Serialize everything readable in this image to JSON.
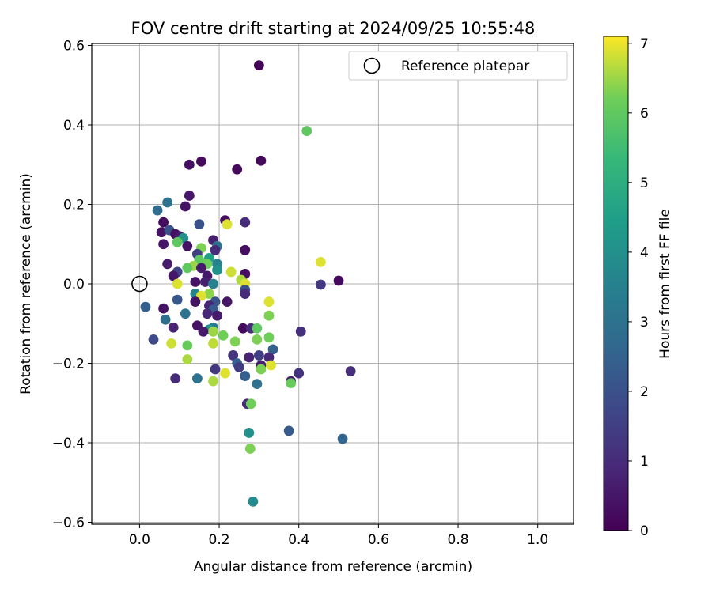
{
  "chart_data": {
    "type": "scatter",
    "title": "FOV centre drift starting at 2024/09/25 10:55:48",
    "xlabel": "Angular distance from reference (arcmin)",
    "ylabel": "Rotation from reference (arcmin)",
    "xlim": [
      -0.12,
      1.09
    ],
    "ylim": [
      -0.605,
      0.605
    ],
    "xticks": [
      0.0,
      0.2,
      0.4,
      0.6,
      0.8,
      1.0
    ],
    "xtick_labels": [
      "0.0",
      "0.2",
      "0.4",
      "0.6",
      "0.8",
      "1.0"
    ],
    "yticks": [
      -0.6,
      -0.4,
      -0.2,
      0.0,
      0.2,
      0.4,
      0.6
    ],
    "ytick_labels": [
      "−0.6",
      "−0.4",
      "−0.2",
      "0.0",
      "0.2",
      "0.4",
      "0.6"
    ],
    "grid": true,
    "legend": {
      "position": "top-right",
      "entries": [
        "Reference platepar"
      ]
    },
    "reference_point": {
      "x": 0.0,
      "y": 0.0
    },
    "colorbar": {
      "label": "Hours from first FF file",
      "colormap": "viridis",
      "range": [
        0,
        7.1
      ],
      "ticks": [
        0,
        1,
        2,
        3,
        4,
        5,
        6,
        7
      ],
      "tick_labels": [
        "0",
        "1",
        "2",
        "3",
        "4",
        "5",
        "6",
        "7"
      ]
    },
    "points": [
      {
        "x": 0.3,
        "y": 0.55,
        "h": 0.1
      },
      {
        "x": 0.42,
        "y": 0.385,
        "h": 6.0
      },
      {
        "x": 0.305,
        "y": 0.31,
        "h": 0.2
      },
      {
        "x": 0.155,
        "y": 0.308,
        "h": 0.2
      },
      {
        "x": 0.125,
        "y": 0.3,
        "h": 0.3
      },
      {
        "x": 0.245,
        "y": 0.288,
        "h": 0.2
      },
      {
        "x": 0.125,
        "y": 0.222,
        "h": 0.5
      },
      {
        "x": 0.07,
        "y": 0.205,
        "h": 3.0
      },
      {
        "x": 0.115,
        "y": 0.195,
        "h": 0.4
      },
      {
        "x": 0.045,
        "y": 0.185,
        "h": 2.8
      },
      {
        "x": 0.215,
        "y": 0.16,
        "h": 0.3
      },
      {
        "x": 0.265,
        "y": 0.155,
        "h": 1.0
      },
      {
        "x": 0.06,
        "y": 0.155,
        "h": 0.3
      },
      {
        "x": 0.15,
        "y": 0.15,
        "h": 2.0
      },
      {
        "x": 0.22,
        "y": 0.15,
        "h": 6.9
      },
      {
        "x": 0.055,
        "y": 0.13,
        "h": 0.4
      },
      {
        "x": 0.075,
        "y": 0.135,
        "h": 2.0
      },
      {
        "x": 0.09,
        "y": 0.125,
        "h": 0.3
      },
      {
        "x": 0.1,
        "y": 0.12,
        "h": 0.6
      },
      {
        "x": 0.11,
        "y": 0.115,
        "h": 4.0
      },
      {
        "x": 0.185,
        "y": 0.11,
        "h": 0.7
      },
      {
        "x": 0.095,
        "y": 0.105,
        "h": 6.0
      },
      {
        "x": 0.06,
        "y": 0.1,
        "h": 0.5
      },
      {
        "x": 0.195,
        "y": 0.095,
        "h": 3.0
      },
      {
        "x": 0.12,
        "y": 0.095,
        "h": 0.4
      },
      {
        "x": 0.155,
        "y": 0.09,
        "h": 6.3
      },
      {
        "x": 0.265,
        "y": 0.085,
        "h": 0.3
      },
      {
        "x": 0.19,
        "y": 0.085,
        "h": 1.0
      },
      {
        "x": 0.145,
        "y": 0.075,
        "h": 1.5
      },
      {
        "x": 0.175,
        "y": 0.065,
        "h": 4.5
      },
      {
        "x": 0.15,
        "y": 0.06,
        "h": 6.0
      },
      {
        "x": 0.135,
        "y": 0.045,
        "h": 6.5
      },
      {
        "x": 0.455,
        "y": 0.055,
        "h": 6.9
      },
      {
        "x": 0.07,
        "y": 0.05,
        "h": 0.6
      },
      {
        "x": 0.12,
        "y": 0.04,
        "h": 6.0
      },
      {
        "x": 0.195,
        "y": 0.05,
        "h": 3.5
      },
      {
        "x": 0.17,
        "y": 0.05,
        "h": 6.2
      },
      {
        "x": 0.155,
        "y": 0.04,
        "h": 0.6
      },
      {
        "x": 0.195,
        "y": 0.035,
        "h": 4.0
      },
      {
        "x": 0.23,
        "y": 0.03,
        "h": 6.8
      },
      {
        "x": 0.095,
        "y": 0.03,
        "h": 1.6
      },
      {
        "x": 0.085,
        "y": 0.02,
        "h": 0.5
      },
      {
        "x": 0.17,
        "y": 0.02,
        "h": 0.5
      },
      {
        "x": 0.265,
        "y": 0.025,
        "h": 0.3
      },
      {
        "x": 0.255,
        "y": 0.01,
        "h": 6.6
      },
      {
        "x": 0.14,
        "y": 0.005,
        "h": 0.4
      },
      {
        "x": 0.165,
        "y": 0.005,
        "h": 0.7
      },
      {
        "x": 0.185,
        "y": 0.0,
        "h": 3.5
      },
      {
        "x": 0.095,
        "y": 0.0,
        "h": 6.9
      },
      {
        "x": 0.265,
        "y": 0.0,
        "h": 6.9
      },
      {
        "x": 0.5,
        "y": 0.008,
        "h": 0.2
      },
      {
        "x": 0.455,
        "y": -0.002,
        "h": 1.3
      },
      {
        "x": 0.265,
        "y": -0.015,
        "h": 2.0
      },
      {
        "x": 0.265,
        "y": -0.025,
        "h": 1.0
      },
      {
        "x": 0.14,
        "y": -0.025,
        "h": 3.6
      },
      {
        "x": 0.175,
        "y": -0.025,
        "h": 6.4
      },
      {
        "x": 0.155,
        "y": -0.03,
        "h": 6.9
      },
      {
        "x": 0.095,
        "y": -0.04,
        "h": 2.2
      },
      {
        "x": 0.14,
        "y": -0.045,
        "h": 0.4
      },
      {
        "x": 0.22,
        "y": -0.045,
        "h": 0.5
      },
      {
        "x": 0.19,
        "y": -0.045,
        "h": 2.1
      },
      {
        "x": 0.175,
        "y": -0.055,
        "h": 0.8
      },
      {
        "x": 0.185,
        "y": -0.065,
        "h": 2.3
      },
      {
        "x": 0.06,
        "y": -0.062,
        "h": 0.4
      },
      {
        "x": 0.015,
        "y": -0.058,
        "h": 2.4
      },
      {
        "x": 0.325,
        "y": -0.045,
        "h": 6.9
      },
      {
        "x": 0.115,
        "y": -0.075,
        "h": 3.0
      },
      {
        "x": 0.17,
        "y": -0.075,
        "h": 0.9
      },
      {
        "x": 0.195,
        "y": -0.08,
        "h": 0.6
      },
      {
        "x": 0.325,
        "y": -0.08,
        "h": 6.3
      },
      {
        "x": 0.065,
        "y": -0.09,
        "h": 2.9
      },
      {
        "x": 0.145,
        "y": -0.105,
        "h": 0.4
      },
      {
        "x": 0.185,
        "y": -0.11,
        "h": 3.4
      },
      {
        "x": 0.175,
        "y": -0.115,
        "h": 4.1
      },
      {
        "x": 0.26,
        "y": -0.112,
        "h": 0.2
      },
      {
        "x": 0.28,
        "y": -0.112,
        "h": 1.0
      },
      {
        "x": 0.295,
        "y": -0.112,
        "h": 6.0
      },
      {
        "x": 0.085,
        "y": -0.11,
        "h": 0.8
      },
      {
        "x": 0.185,
        "y": -0.12,
        "h": 6.5
      },
      {
        "x": 0.16,
        "y": -0.12,
        "h": 0.6
      },
      {
        "x": 0.405,
        "y": -0.12,
        "h": 1.1
      },
      {
        "x": 0.21,
        "y": -0.13,
        "h": 6.2
      },
      {
        "x": 0.035,
        "y": -0.14,
        "h": 1.8
      },
      {
        "x": 0.295,
        "y": -0.14,
        "h": 6.3
      },
      {
        "x": 0.325,
        "y": -0.135,
        "h": 6.2
      },
      {
        "x": 0.08,
        "y": -0.15,
        "h": 6.8
      },
      {
        "x": 0.185,
        "y": -0.15,
        "h": 6.7
      },
      {
        "x": 0.24,
        "y": -0.145,
        "h": 6.3
      },
      {
        "x": 0.12,
        "y": -0.155,
        "h": 6.1
      },
      {
        "x": 0.335,
        "y": -0.165,
        "h": 2.5
      },
      {
        "x": 0.235,
        "y": -0.18,
        "h": 1.2
      },
      {
        "x": 0.275,
        "y": -0.185,
        "h": 0.8
      },
      {
        "x": 0.3,
        "y": -0.18,
        "h": 1.5
      },
      {
        "x": 0.325,
        "y": -0.185,
        "h": 0.9
      },
      {
        "x": 0.12,
        "y": -0.19,
        "h": 6.6
      },
      {
        "x": 0.245,
        "y": -0.2,
        "h": 2.4
      },
      {
        "x": 0.25,
        "y": -0.21,
        "h": 1.4
      },
      {
        "x": 0.305,
        "y": -0.205,
        "h": 0.7
      },
      {
        "x": 0.33,
        "y": -0.205,
        "h": 6.9
      },
      {
        "x": 0.305,
        "y": -0.215,
        "h": 6.3
      },
      {
        "x": 0.19,
        "y": -0.215,
        "h": 1.3
      },
      {
        "x": 0.215,
        "y": -0.225,
        "h": 6.9
      },
      {
        "x": 0.4,
        "y": -0.225,
        "h": 1.2
      },
      {
        "x": 0.53,
        "y": -0.22,
        "h": 1.1
      },
      {
        "x": 0.265,
        "y": -0.232,
        "h": 2.4
      },
      {
        "x": 0.09,
        "y": -0.238,
        "h": 1.0
      },
      {
        "x": 0.145,
        "y": -0.238,
        "h": 3.0
      },
      {
        "x": 0.38,
        "y": -0.245,
        "h": 0.6
      },
      {
        "x": 0.38,
        "y": -0.25,
        "h": 6.1
      },
      {
        "x": 0.185,
        "y": -0.245,
        "h": 6.6
      },
      {
        "x": 0.295,
        "y": -0.252,
        "h": 3.0
      },
      {
        "x": 0.27,
        "y": -0.302,
        "h": 1.0
      },
      {
        "x": 0.28,
        "y": -0.302,
        "h": 6.2
      },
      {
        "x": 0.375,
        "y": -0.37,
        "h": 2.3
      },
      {
        "x": 0.275,
        "y": -0.375,
        "h": 4.0
      },
      {
        "x": 0.51,
        "y": -0.39,
        "h": 2.6
      },
      {
        "x": 0.278,
        "y": -0.415,
        "h": 6.3
      },
      {
        "x": 0.285,
        "y": -0.548,
        "h": 3.8
      }
    ]
  }
}
